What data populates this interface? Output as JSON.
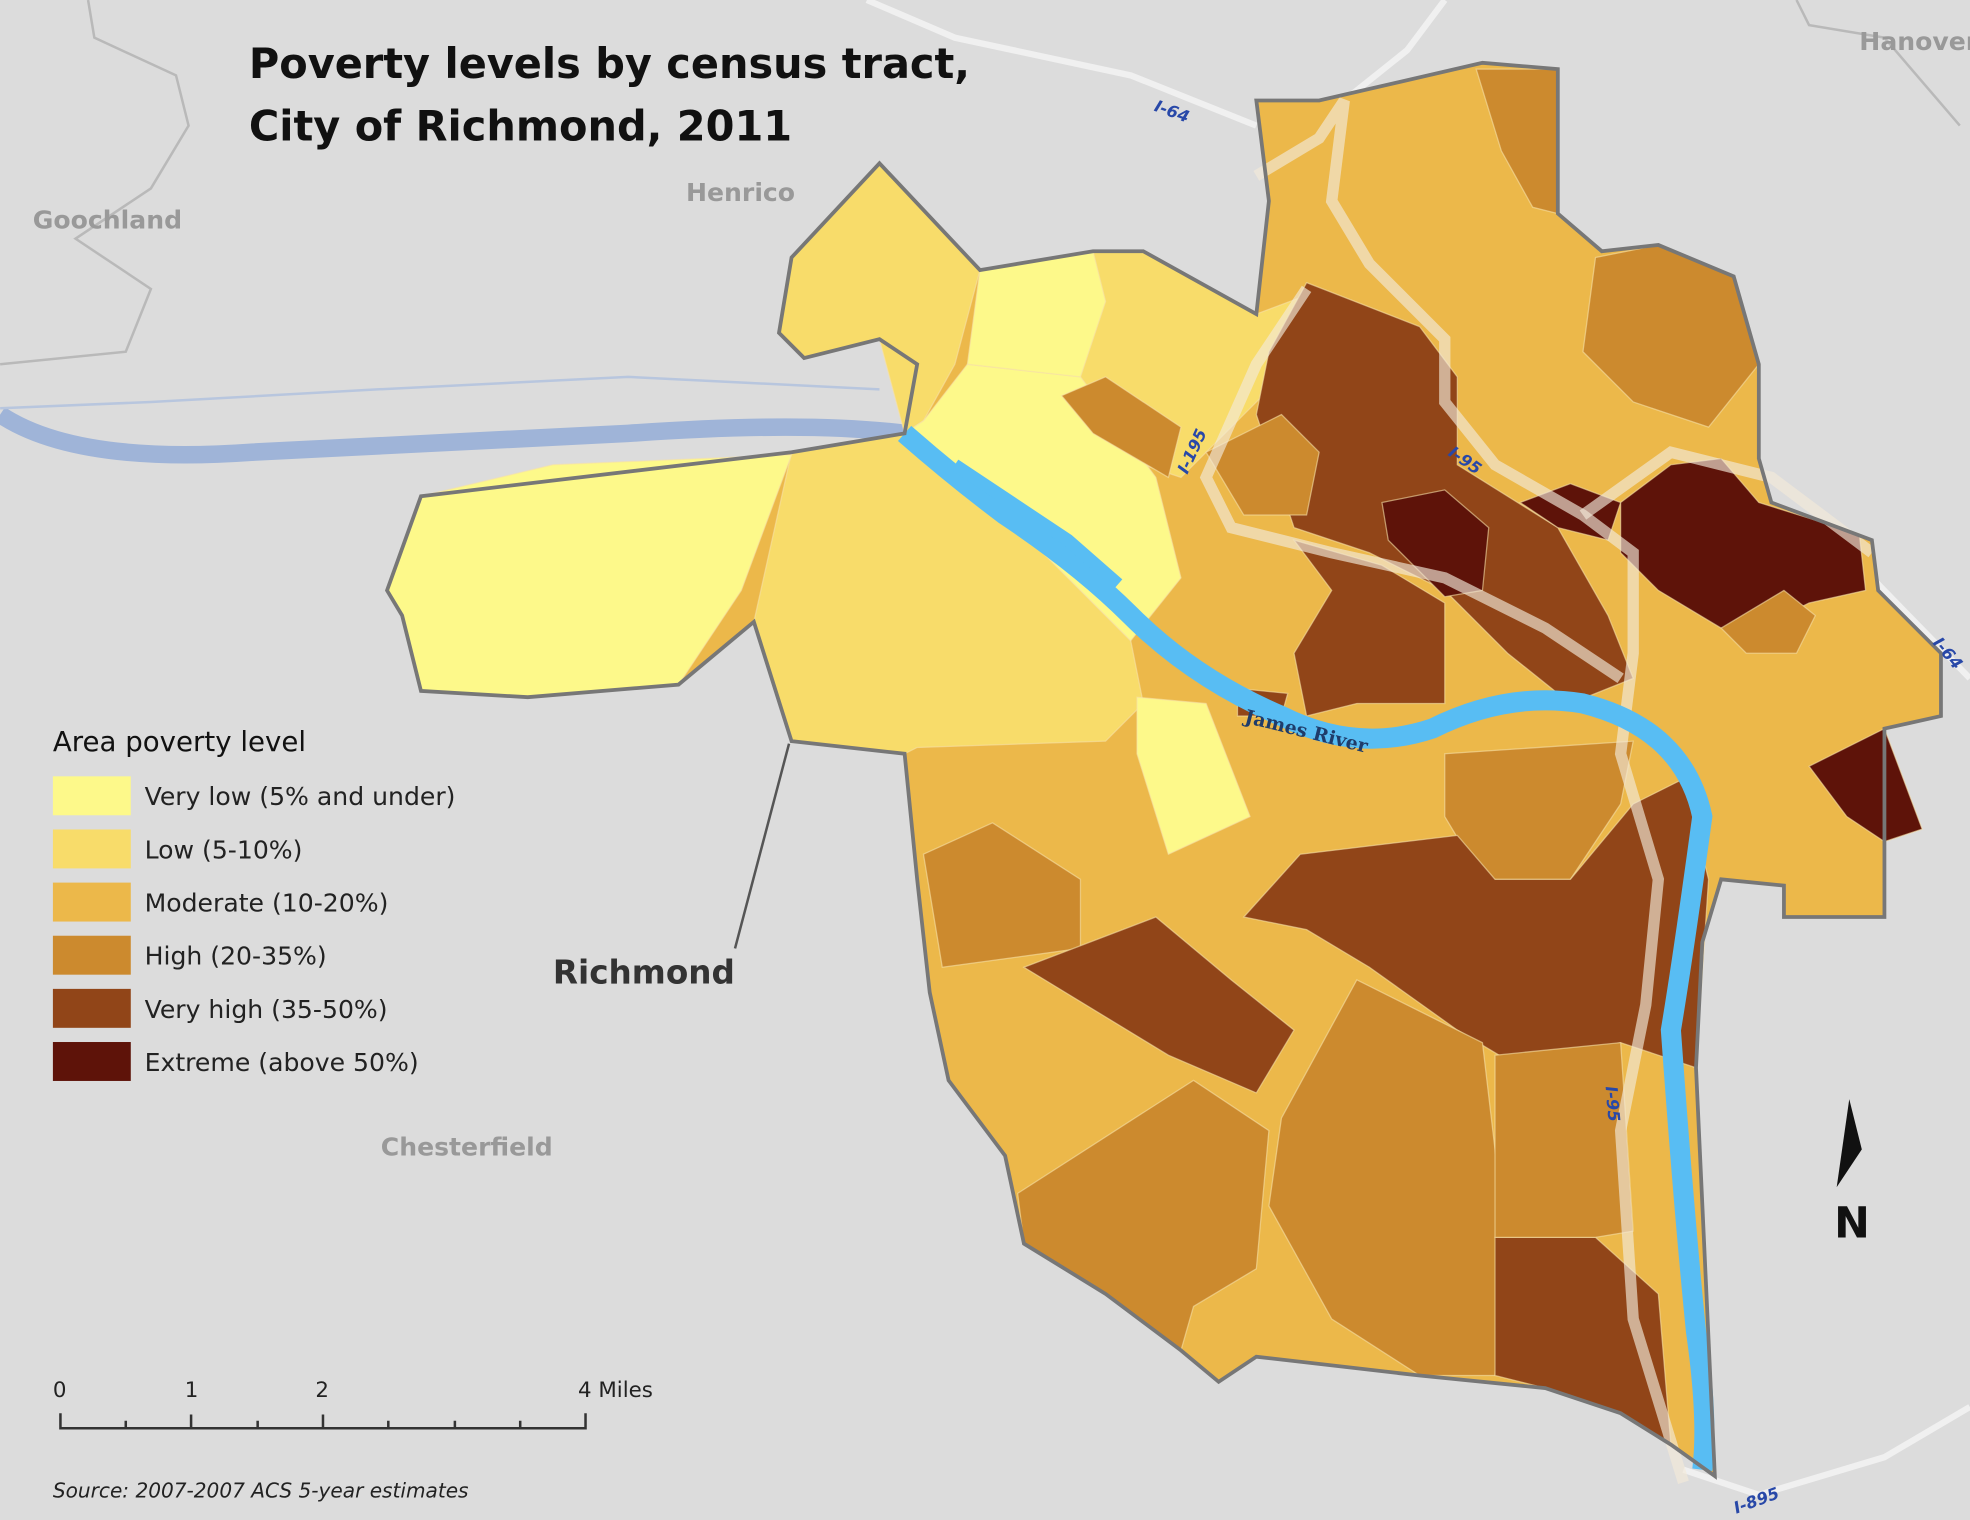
{
  "title": [
    "Poverty levels by census tract,",
    "City of Richmond, 2011"
  ],
  "places": {
    "goochland": "Goochland",
    "henrico": "Henrico",
    "hanover": "Hanover",
    "chesterfield": "Chesterfield",
    "richmond": "Richmond"
  },
  "roads": {
    "i64_north": "I-64",
    "i64_east": "I-64",
    "i195": "I-195",
    "i95_north": "I-95",
    "i95_south": "I-95",
    "i895": "I-895"
  },
  "river": "James River",
  "legend": {
    "title": "Area poverty level",
    "items": [
      {
        "label": "Very low (5% and under)",
        "color": "#fdf98a"
      },
      {
        "label": "Low (5-10%)",
        "color": "#f8dc6a"
      },
      {
        "label": "Moderate (10-20%)",
        "color": "#ecb84a"
      },
      {
        "label": "High (20-35%)",
        "color": "#cc8a2e"
      },
      {
        "label": "Very high (35-50%)",
        "color": "#914518"
      },
      {
        "label": "Extreme (above 50%)",
        "color": "#5e1309"
      }
    ]
  },
  "scale_bar": [
    "0",
    "1",
    "2",
    "4 Miles"
  ],
  "north_arrow": "N",
  "source": "Source: 2007-2007 ACS 5-year estimates"
}
